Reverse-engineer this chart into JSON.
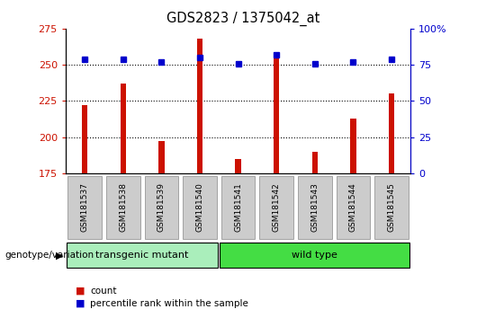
{
  "title": "GDS2823 / 1375042_at",
  "samples": [
    "GSM181537",
    "GSM181538",
    "GSM181539",
    "GSM181540",
    "GSM181541",
    "GSM181542",
    "GSM181543",
    "GSM181544",
    "GSM181545"
  ],
  "counts": [
    222,
    237,
    197,
    268,
    185,
    256,
    190,
    213,
    230
  ],
  "percentile_ranks": [
    79,
    79,
    77,
    80,
    76,
    82,
    76,
    77,
    79
  ],
  "ylim_left": [
    175,
    275
  ],
  "ylim_right": [
    0,
    100
  ],
  "yticks_left": [
    175,
    200,
    225,
    250,
    275
  ],
  "yticks_right": [
    0,
    25,
    50,
    75,
    100
  ],
  "bar_color": "#cc1100",
  "dot_color": "#0000cc",
  "grid_color": "#000000",
  "bg_color": "#ffffff",
  "plot_bg_color": "#ffffff",
  "groups": [
    {
      "label": "transgenic mutant",
      "start": 0,
      "end": 3,
      "color": "#aaeebb"
    },
    {
      "label": "wild type",
      "start": 4,
      "end": 8,
      "color": "#44dd44"
    }
  ],
  "group_label": "genotype/variation",
  "legend_count_label": "count",
  "legend_pct_label": "percentile rank within the sample",
  "tick_bg_color": "#cccccc",
  "bar_width": 0.15
}
